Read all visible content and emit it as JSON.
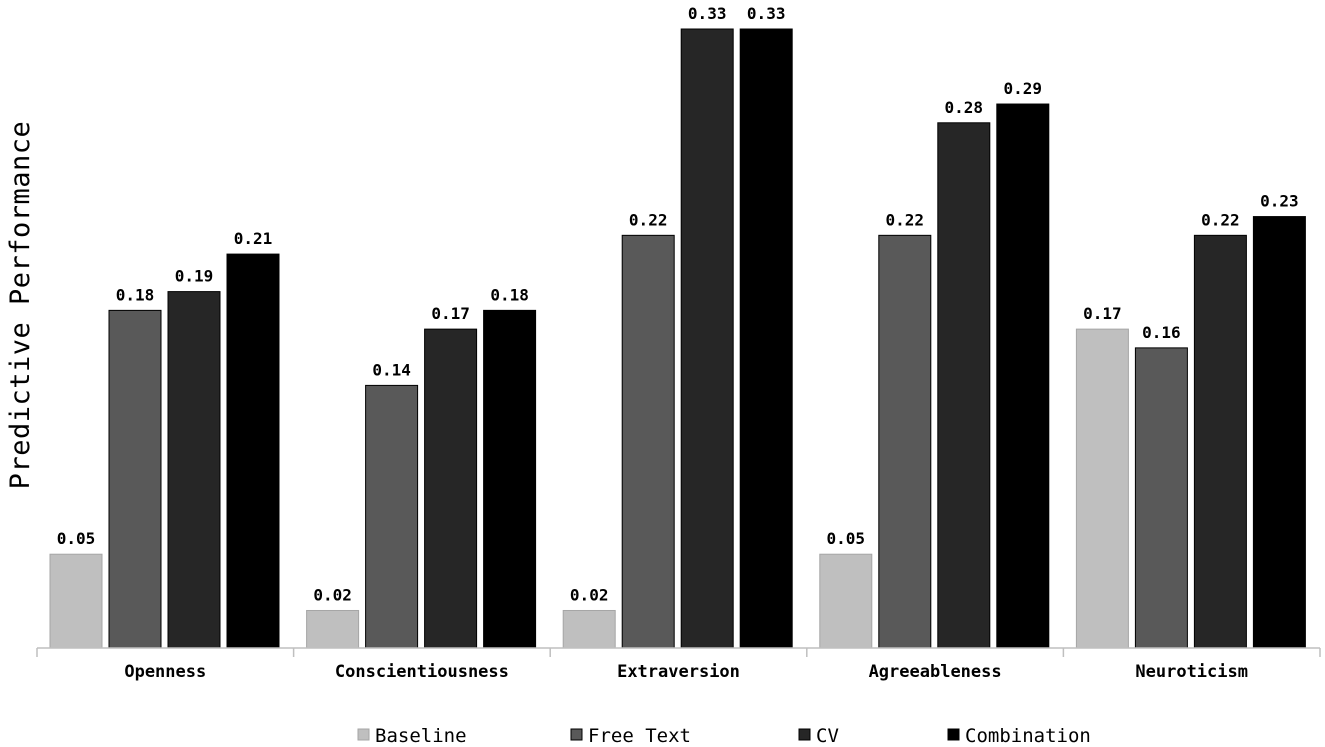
{
  "chart_data": {
    "type": "bar",
    "title": "",
    "xlabel": "",
    "ylabel": "Predictive Performance",
    "ylim": [
      0,
      0.33
    ],
    "grid": false,
    "legend_position": "bottom",
    "categories": [
      "Openness",
      "Conscientiousness",
      "Extraversion",
      "Agreeableness",
      "Neuroticism"
    ],
    "series": [
      {
        "name": "Baseline",
        "color": "#bfbfbf",
        "values": [
          0.05,
          0.02,
          0.02,
          0.05,
          0.17
        ]
      },
      {
        "name": "Free Text",
        "color": "#595959",
        "values": [
          0.18,
          0.14,
          0.22,
          0.22,
          0.16
        ]
      },
      {
        "name": "CV",
        "color": "#262626",
        "values": [
          0.19,
          0.17,
          0.33,
          0.28,
          0.22
        ]
      },
      {
        "name": "Combination",
        "color": "#000000",
        "values": [
          0.21,
          0.18,
          0.33,
          0.29,
          0.23
        ]
      }
    ],
    "data_labels": [
      [
        "0.05",
        "0.18",
        "0.19",
        "0.21"
      ],
      [
        "0.02",
        "0.14",
        "0.17",
        "0.18"
      ],
      [
        "0.02",
        "0.22",
        "0.33",
        "0.33"
      ],
      [
        "0.05",
        "0.22",
        "0.28",
        "0.29"
      ],
      [
        "0.17",
        "0.16",
        "0.22",
        "0.23"
      ]
    ]
  }
}
